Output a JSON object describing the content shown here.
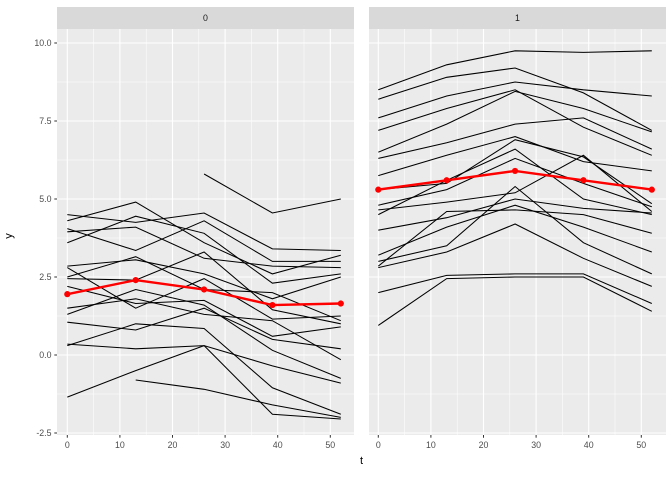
{
  "figure": {
    "background": "#ffffff"
  },
  "axes": {
    "x_label": "t",
    "y_label": "y",
    "x_ticks": [
      "0",
      "10",
      "20",
      "30",
      "40",
      "50"
    ],
    "y_ticks": [
      "-2.5",
      "0.0",
      "2.5",
      "5.0",
      "7.5",
      "10.0"
    ]
  },
  "colors": {
    "strip_bg": "#d9d9d9",
    "strip_text": "#1a1a1a",
    "panel_bg": "#ebebeb",
    "grid": "#ffffff",
    "series_line": "#000000",
    "mean_line": "#ff0000",
    "tick_text": "#4d4d4d",
    "tick_mark": "#333333",
    "axis_title": "#000000"
  },
  "chart_data": {
    "type": "line",
    "title": "",
    "xlabel": "t",
    "ylabel": "y",
    "facet_labels": [
      "0",
      "1"
    ],
    "x": [
      0,
      13,
      26,
      39,
      52
    ],
    "x_tick_values": [
      0,
      10,
      20,
      30,
      40,
      50
    ],
    "y_tick_values": [
      -2.5,
      0,
      2.5,
      5,
      7.5,
      10
    ],
    "xlim": [
      -1,
      54.5
    ],
    "ylim": [
      -2.7,
      10.45
    ],
    "grid": "on",
    "legend": "none",
    "description": "Spaghetti plot of individual subject trajectories (black) with group mean trajectory (red, with points) faceted by group 0 and group 1",
    "facets": [
      {
        "label": "0",
        "mean": {
          "name": "mean",
          "color": "#ff0000",
          "x": [
            0,
            13,
            26,
            39,
            52
          ],
          "values": [
            1.95,
            2.4,
            2.1,
            1.6,
            1.65
          ]
        },
        "series": [
          {
            "points": [
              [
                26,
                5.8
              ],
              [
                39,
                4.55
              ],
              [
                52,
                5.0
              ]
            ]
          },
          {
            "points": [
              [
                0,
                4.5
              ],
              [
                13,
                4.25
              ],
              [
                26,
                4.55
              ],
              [
                39,
                3.4
              ],
              [
                52,
                3.35
              ]
            ]
          },
          {
            "points": [
              [
                0,
                4.3
              ],
              [
                13,
                4.9
              ],
              [
                26,
                3.6
              ],
              [
                39,
                2.6
              ],
              [
                52,
                3.2
              ]
            ]
          },
          {
            "points": [
              [
                0,
                4.05
              ],
              [
                13,
                3.35
              ],
              [
                26,
                4.3
              ],
              [
                39,
                3.0
              ],
              [
                52,
                3.0
              ]
            ]
          },
          {
            "points": [
              [
                0,
                3.95
              ],
              [
                13,
                4.1
              ],
              [
                26,
                3.1
              ],
              [
                39,
                2.85
              ],
              [
                52,
                2.8
              ]
            ]
          },
          {
            "points": [
              [
                0,
                3.6
              ],
              [
                13,
                4.45
              ],
              [
                26,
                3.9
              ],
              [
                39,
                2.3
              ],
              [
                52,
                2.6
              ]
            ]
          },
          {
            "points": [
              [
                0,
                2.85
              ],
              [
                13,
                3.05
              ],
              [
                26,
                2.6
              ],
              [
                39,
                1.8
              ],
              [
                52,
                2.5
              ]
            ]
          },
          {
            "points": [
              [
                0,
                2.8
              ],
              [
                13,
                1.5
              ],
              [
                26,
                2.45
              ],
              [
                39,
                1.15
              ],
              [
                52,
                1.25
              ]
            ]
          },
          {
            "points": [
              [
                0,
                2.5
              ],
              [
                13,
                3.15
              ],
              [
                26,
                2.1
              ],
              [
                39,
                2.0
              ],
              [
                52,
                1.1
              ]
            ]
          },
          {
            "points": [
              [
                0,
                2.45
              ],
              [
                13,
                2.4
              ],
              [
                26,
                3.3
              ],
              [
                39,
                1.45
              ],
              [
                52,
                1.0
              ]
            ]
          },
          {
            "points": [
              [
                0,
                2.2
              ],
              [
                13,
                1.65
              ],
              [
                26,
                1.75
              ],
              [
                39,
                0.6
              ],
              [
                52,
                0.9
              ]
            ]
          },
          {
            "points": [
              [
                0,
                1.5
              ],
              [
                13,
                1.8
              ],
              [
                26,
                1.3
              ],
              [
                39,
                1.1
              ],
              [
                52,
                -0.15
              ]
            ]
          },
          {
            "points": [
              [
                0,
                1.3
              ],
              [
                13,
                2.1
              ],
              [
                26,
                1.6
              ],
              [
                39,
                0.15
              ],
              [
                52,
                -0.75
              ]
            ]
          },
          {
            "points": [
              [
                0,
                1.05
              ],
              [
                13,
                0.8
              ],
              [
                26,
                1.5
              ],
              [
                39,
                0.5
              ],
              [
                52,
                0.2
              ]
            ]
          },
          {
            "points": [
              [
                0,
                0.35
              ],
              [
                13,
                0.2
              ],
              [
                26,
                0.3
              ],
              [
                39,
                -0.35
              ],
              [
                52,
                -0.9
              ]
            ]
          },
          {
            "points": [
              [
                0,
                0.3
              ],
              [
                13,
                1.0
              ],
              [
                26,
                0.85
              ],
              [
                39,
                -1.05
              ],
              [
                52,
                -1.9
              ]
            ]
          },
          {
            "points": [
              [
                0,
                -1.35
              ],
              [
                13,
                -0.5
              ],
              [
                26,
                0.3
              ],
              [
                39,
                -1.9
              ],
              [
                52,
                -2.05
              ]
            ]
          },
          {
            "points": [
              [
                13,
                -0.8
              ],
              [
                26,
                -1.1
              ],
              [
                39,
                -1.6
              ],
              [
                52,
                -2.0
              ]
            ]
          }
        ]
      },
      {
        "label": "1",
        "mean": {
          "name": "mean",
          "color": "#ff0000",
          "x": [
            0,
            13,
            26,
            39,
            52
          ],
          "values": [
            5.3,
            5.6,
            5.9,
            5.6,
            5.3
          ]
        },
        "series": [
          {
            "points": [
              [
                0,
                8.5
              ],
              [
                13,
                9.3
              ],
              [
                26,
                9.75
              ],
              [
                39,
                9.7
              ],
              [
                52,
                9.75
              ]
            ]
          },
          {
            "points": [
              [
                0,
                8.2
              ],
              [
                13,
                8.9
              ],
              [
                26,
                9.2
              ],
              [
                39,
                8.4
              ],
              [
                52,
                7.2
              ]
            ]
          },
          {
            "points": [
              [
                0,
                7.6
              ],
              [
                13,
                8.3
              ],
              [
                26,
                8.75
              ],
              [
                39,
                8.5
              ],
              [
                52,
                8.3
              ]
            ]
          },
          {
            "points": [
              [
                0,
                7.2
              ],
              [
                13,
                7.9
              ],
              [
                26,
                8.5
              ],
              [
                39,
                7.3
              ],
              [
                52,
                6.4
              ]
            ]
          },
          {
            "points": [
              [
                0,
                6.5
              ],
              [
                13,
                7.4
              ],
              [
                26,
                8.45
              ],
              [
                39,
                7.9
              ],
              [
                52,
                7.15
              ]
            ]
          },
          {
            "points": [
              [
                0,
                6.3
              ],
              [
                13,
                6.8
              ],
              [
                26,
                7.4
              ],
              [
                39,
                7.6
              ],
              [
                52,
                6.6
              ]
            ]
          },
          {
            "points": [
              [
                0,
                5.75
              ],
              [
                13,
                6.4
              ],
              [
                26,
                7.0
              ],
              [
                39,
                6.2
              ],
              [
                52,
                5.9
              ]
            ]
          },
          {
            "points": [
              [
                0,
                5.3
              ],
              [
                13,
                5.5
              ],
              [
                26,
                6.9
              ],
              [
                39,
                6.35
              ],
              [
                52,
                4.85
              ]
            ]
          },
          {
            "points": [
              [
                0,
                4.8
              ],
              [
                13,
                5.3
              ],
              [
                26,
                6.3
              ],
              [
                39,
                5.5
              ],
              [
                52,
                4.75
              ]
            ]
          },
          {
            "points": [
              [
                0,
                4.65
              ],
              [
                13,
                4.9
              ],
              [
                26,
                5.2
              ],
              [
                39,
                6.4
              ],
              [
                52,
                4.6
              ]
            ]
          },
          {
            "points": [
              [
                0,
                4.5
              ],
              [
                13,
                5.6
              ],
              [
                26,
                6.6
              ],
              [
                39,
                5.0
              ],
              [
                52,
                4.5
              ]
            ]
          },
          {
            "points": [
              [
                0,
                4.0
              ],
              [
                13,
                4.4
              ],
              [
                26,
                5.0
              ],
              [
                39,
                4.7
              ],
              [
                52,
                4.55
              ]
            ]
          },
          {
            "points": [
              [
                0,
                3.2
              ],
              [
                13,
                4.1
              ],
              [
                26,
                4.8
              ],
              [
                39,
                4.1
              ],
              [
                52,
                3.3
              ]
            ]
          },
          {
            "points": [
              [
                0,
                3.0
              ],
              [
                13,
                3.5
              ],
              [
                26,
                5.4
              ],
              [
                39,
                3.6
              ],
              [
                52,
                2.6
              ]
            ]
          },
          {
            "points": [
              [
                0,
                2.85
              ],
              [
                13,
                4.6
              ],
              [
                26,
                4.65
              ],
              [
                39,
                4.5
              ],
              [
                52,
                3.9
              ]
            ]
          },
          {
            "points": [
              [
                0,
                2.8
              ],
              [
                13,
                3.3
              ],
              [
                26,
                4.2
              ],
              [
                39,
                3.1
              ],
              [
                52,
                2.2
              ]
            ]
          },
          {
            "points": [
              [
                0,
                2.0
              ],
              [
                13,
                2.55
              ],
              [
                26,
                2.6
              ],
              [
                39,
                2.6
              ],
              [
                52,
                1.65
              ]
            ]
          },
          {
            "points": [
              [
                0,
                0.95
              ],
              [
                13,
                2.45
              ],
              [
                26,
                2.5
              ],
              [
                39,
                2.5
              ],
              [
                52,
                1.4
              ]
            ]
          }
        ]
      }
    ]
  }
}
